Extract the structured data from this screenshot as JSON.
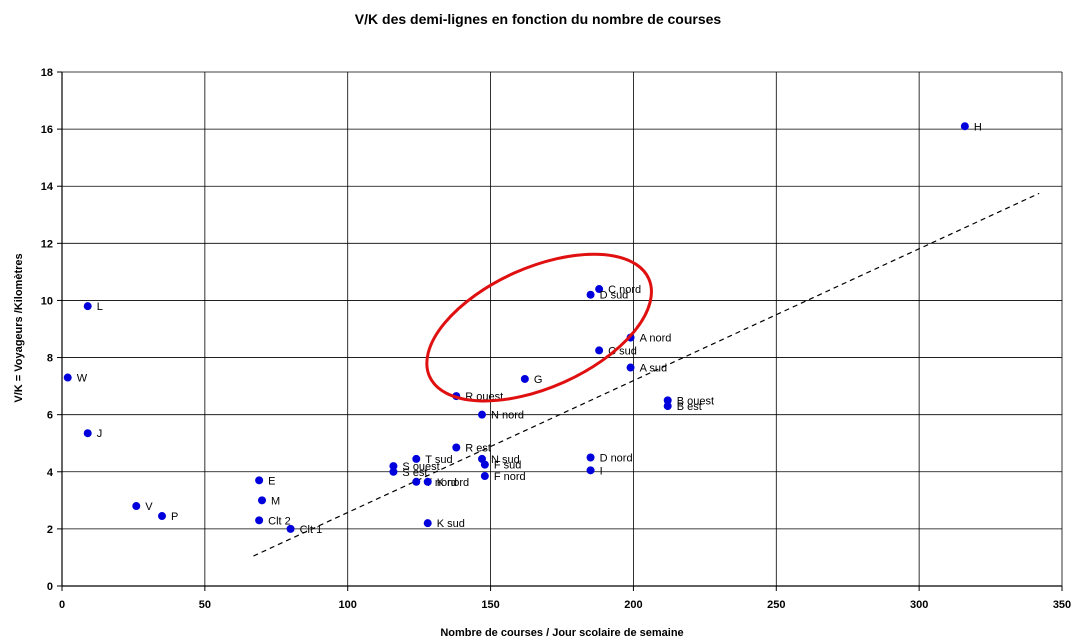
{
  "chart_data": {
    "type": "scatter",
    "title": "V/K des demi-lignes en fonction du nombre de courses",
    "xlabel": "Nombre de courses / Jour scolaire de semaine",
    "ylabel": "V/K = Voyageurs /Kilomètres",
    "xlim": [
      0,
      350
    ],
    "ylim": [
      0,
      18
    ],
    "xticks": [
      "0",
      "50",
      "100",
      "150",
      "200",
      "250",
      "300",
      "350"
    ],
    "yticks": [
      "0",
      "2",
      "4",
      "6",
      "8",
      "10",
      "12",
      "14",
      "16",
      "18"
    ],
    "grid": {
      "vertical": true,
      "horizontal": true
    },
    "legend": "none",
    "colors": {
      "points": "#0000dd",
      "trend": "#000000",
      "highlight": "#e01010",
      "grid": "#000000"
    },
    "points": [
      {
        "label": "H",
        "x": 316,
        "y": 16.1
      },
      {
        "label": "L",
        "x": 9,
        "y": 9.8
      },
      {
        "label": "W",
        "x": 2,
        "y": 7.3
      },
      {
        "label": "J",
        "x": 9,
        "y": 5.35
      },
      {
        "label": "V",
        "x": 26,
        "y": 2.8
      },
      {
        "label": "P",
        "x": 35,
        "y": 2.45
      },
      {
        "label": "E",
        "x": 69,
        "y": 3.7
      },
      {
        "label": "M",
        "x": 70,
        "y": 3.0
      },
      {
        "label": "Clt 2",
        "x": 69,
        "y": 2.3
      },
      {
        "label": "Clt 1",
        "x": 80,
        "y": 2.0
      },
      {
        "label": "C nord",
        "x": 188,
        "y": 10.4
      },
      {
        "label": "D sud",
        "x": 185,
        "y": 10.2
      },
      {
        "label": "A nord",
        "x": 199,
        "y": 8.7
      },
      {
        "label": "C sud",
        "x": 188,
        "y": 8.25
      },
      {
        "label": "A sud",
        "x": 199,
        "y": 7.65
      },
      {
        "label": "G",
        "x": 162,
        "y": 7.25
      },
      {
        "label": "B ouest",
        "x": 212,
        "y": 6.5
      },
      {
        "label": "B est",
        "x": 212,
        "y": 6.3
      },
      {
        "label": "R ouest",
        "x": 138,
        "y": 6.65
      },
      {
        "label": "N nord",
        "x": 147,
        "y": 6.0
      },
      {
        "label": "R est",
        "x": 138,
        "y": 4.85
      },
      {
        "label": "T sud",
        "x": 124,
        "y": 4.45
      },
      {
        "label": "S ouest",
        "x": 116,
        "y": 4.2
      },
      {
        "label": "S est",
        "x": 116,
        "y": 4.0
      },
      {
        "label": "N sud",
        "x": 147,
        "y": 4.45
      },
      {
        "label": "F sud",
        "x": 148,
        "y": 4.25
      },
      {
        "label": "F nord",
        "x": 148,
        "y": 3.85
      },
      {
        "label": "T nord",
        "x": 124,
        "y": 3.65
      },
      {
        "label": "K nord",
        "x": 128,
        "y": 3.65
      },
      {
        "label": "D nord",
        "x": 185,
        "y": 4.5
      },
      {
        "label": "I",
        "x": 185,
        "y": 4.05
      },
      {
        "label": "K sud",
        "x": 128,
        "y": 2.2
      }
    ],
    "trendline": {
      "style": "dashed",
      "x": [
        67,
        342
      ],
      "y": [
        1.05,
        13.75
      ]
    },
    "annotation": {
      "shape": "ellipse",
      "cx": 167,
      "cy": 9.05,
      "rx": 42,
      "ry": 4.2,
      "rotate_deg": -24
    }
  }
}
